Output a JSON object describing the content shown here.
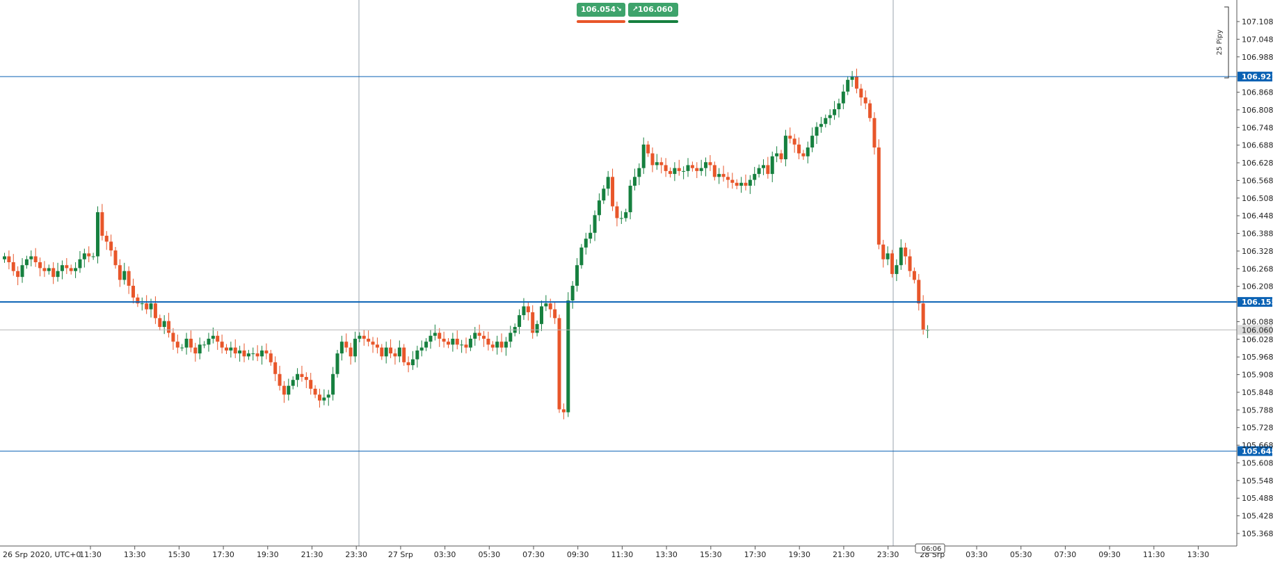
{
  "widget": {
    "sell_price": "106.054",
    "buy_price": "106.060",
    "colors": {
      "button": "#3ea36b",
      "sell_bar": "#e8562a",
      "buy_bar": "#16803f"
    }
  },
  "chart_data": {
    "type": "candlestick",
    "colors": {
      "up": "#16803f",
      "down": "#e8562a",
      "marker": "#0a62b4",
      "grid": "#9aa3ad"
    },
    "y_range": [
      105.308,
      107.168
    ],
    "y_ticks": [
      "107.108",
      "107.048",
      "106.988",
      "106.868",
      "106.808",
      "106.748",
      "106.688",
      "106.628",
      "106.568",
      "106.508",
      "106.448",
      "106.388",
      "106.328",
      "106.268",
      "106.208",
      "106.088",
      "106.028",
      "105.968",
      "105.908",
      "105.848",
      "105.788",
      "105.728",
      "105.668",
      "105.608",
      "105.548",
      "105.488",
      "105.428",
      "105.368"
    ],
    "price_markers": [
      {
        "label": "106.921",
        "value": 106.921
      },
      {
        "label": "106.155",
        "value": 106.155
      },
      {
        "label": "105.648",
        "value": 105.648
      }
    ],
    "current_price": {
      "label": "106.060",
      "value": 106.06
    },
    "scale_label": "25 Pipy",
    "time_marker": "06:06",
    "x_labels": [
      "26 Srp 2020, UTC+0",
      "11:30",
      "13:30",
      "15:30",
      "17:30",
      "19:30",
      "21:30",
      "23:30",
      "27 Srp",
      "03:30",
      "05:30",
      "07:30",
      "09:30",
      "11:30",
      "13:30",
      "15:30",
      "17:30",
      "19:30",
      "21:30",
      "23:30",
      "28 Srp",
      "03:30",
      "05:30",
      "07:30",
      "09:30",
      "11:30",
      "13:30"
    ],
    "day_separators": [
      "27 Srp",
      "28 Srp"
    ],
    "x_start": "2020-08-26 08:00",
    "x_end": "2020-08-28 14:15",
    "candle_interval_minutes": 15,
    "closes": [
      106.31,
      106.29,
      106.26,
      106.24,
      106.28,
      106.3,
      106.31,
      106.29,
      106.27,
      106.26,
      106.27,
      106.24,
      106.26,
      106.28,
      106.27,
      106.26,
      106.27,
      106.3,
      106.32,
      106.31,
      106.31,
      106.46,
      106.38,
      106.36,
      106.33,
      106.28,
      106.23,
      106.26,
      106.21,
      106.17,
      106.15,
      106.15,
      106.13,
      106.15,
      106.1,
      106.07,
      106.09,
      106.05,
      106.02,
      106.0,
      106.0,
      106.03,
      106.0,
      105.98,
      106.01,
      106.01,
      106.03,
      106.04,
      106.02,
      106.0,
      105.99,
      106.0,
      105.98,
      105.99,
      105.97,
      105.98,
      105.98,
      105.97,
      105.99,
      105.98,
      105.95,
      105.91,
      105.87,
      105.84,
      105.87,
      105.89,
      105.91,
      105.9,
      105.89,
      105.86,
      105.84,
      105.82,
      105.83,
      105.84,
      105.91,
      105.98,
      106.02,
      106.0,
      105.97,
      106.03,
      106.04,
      106.03,
      106.02,
      106.01,
      106.0,
      105.97,
      106.0,
      105.98,
      105.97,
      106.0,
      105.95,
      105.94,
      105.96,
      105.99,
      106.0,
      106.02,
      106.04,
      106.05,
      106.03,
      106.02,
      106.01,
      106.03,
      106.01,
      106.01,
      106.0,
      106.03,
      106.05,
      106.04,
      106.03,
      106.01,
      106.0,
      106.02,
      106.0,
      106.02,
      106.05,
      106.07,
      106.11,
      106.14,
      106.12,
      106.05,
      106.08,
      106.14,
      106.15,
      106.13,
      106.1,
      105.79,
      105.78,
      106.16,
      106.21,
      106.28,
      106.34,
      106.37,
      106.39,
      106.45,
      106.5,
      106.54,
      106.58,
      106.48,
      106.44,
      106.44,
      106.46,
      106.55,
      106.58,
      106.61,
      106.69,
      106.66,
      106.62,
      106.63,
      106.62,
      106.6,
      106.59,
      106.61,
      106.6,
      106.6,
      106.62,
      106.61,
      106.6,
      106.61,
      106.63,
      106.62,
      106.58,
      106.59,
      106.58,
      106.57,
      106.56,
      106.55,
      106.56,
      106.55,
      106.57,
      106.59,
      106.61,
      106.62,
      106.59,
      106.65,
      106.66,
      106.64,
      106.72,
      106.71,
      106.69,
      106.66,
      106.65,
      106.68,
      106.72,
      106.75,
      106.76,
      106.78,
      106.79,
      106.81,
      106.83,
      106.87,
      106.91,
      106.92,
      106.88,
      106.85,
      106.83,
      106.78,
      106.68,
      106.35,
      106.3,
      106.32,
      106.25,
      106.28,
      106.34,
      106.31,
      106.26,
      106.23,
      106.15,
      106.06,
      106.06
    ],
    "markers_note": ""
  }
}
